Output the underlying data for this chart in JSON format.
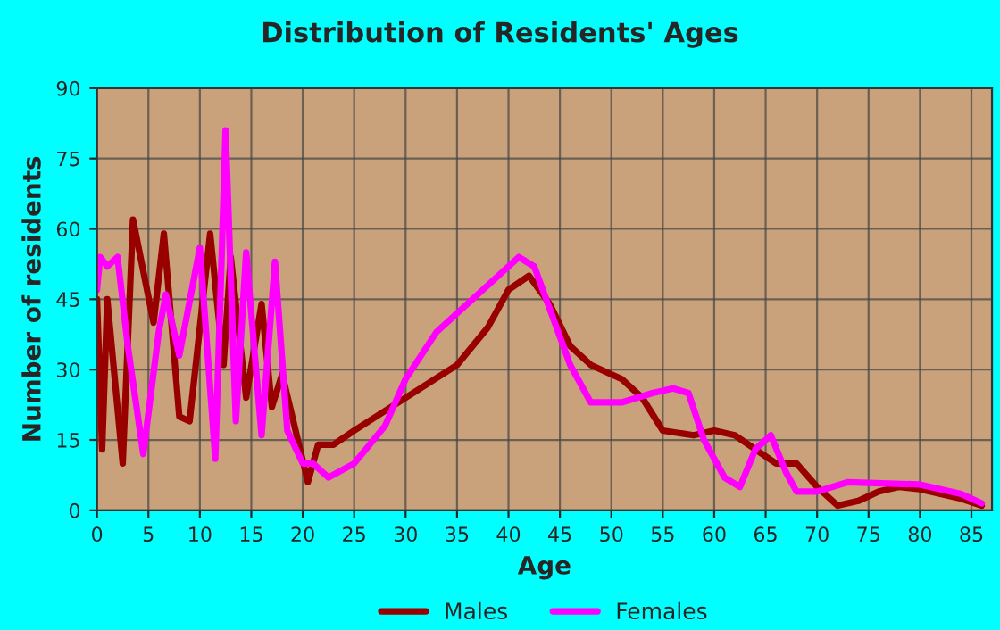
{
  "chart_data": {
    "type": "line",
    "title": "Distribution of Residents' Ages",
    "xlabel": "Age",
    "ylabel": "Number of residents",
    "xlim": [
      0,
      87
    ],
    "xticks": [
      0,
      5,
      10,
      15,
      20,
      25,
      30,
      35,
      40,
      45,
      50,
      55,
      60,
      65,
      70,
      75,
      80,
      85
    ],
    "ylim": [
      0,
      90
    ],
    "yticks": [
      0,
      15,
      30,
      45,
      60,
      75,
      90
    ],
    "grid": true,
    "legend": "bottom",
    "series": [
      {
        "name": "Males",
        "color": "#990000",
        "x": [
          0,
          0.5,
          1,
          2.5,
          3.5,
          5.5,
          6.5,
          8,
          9,
          11,
          12.3,
          13,
          14.5,
          16,
          17,
          18,
          20.5,
          21.5,
          23,
          25,
          30,
          35,
          38,
          40,
          42,
          44,
          46,
          48,
          51,
          53,
          55,
          58,
          60,
          62,
          64,
          66,
          68,
          70,
          72,
          74,
          76,
          78,
          80,
          84,
          86
        ],
        "values": [
          45,
          13,
          45,
          10,
          62,
          40,
          59,
          20,
          19,
          59,
          31,
          54,
          24,
          44,
          22,
          29,
          6,
          14,
          14,
          17,
          24,
          31,
          39,
          47,
          50,
          44,
          35,
          31,
          28,
          24,
          17,
          16,
          17,
          16,
          13,
          10,
          10,
          5,
          1,
          2,
          4,
          5,
          4.5,
          2.5,
          1
        ]
      },
      {
        "name": "Females",
        "color": "#ff00ff",
        "x": [
          0,
          0.3,
          1,
          2,
          3,
          4.5,
          6,
          6.7,
          8,
          10,
          11.5,
          12.5,
          13.5,
          14.5,
          16,
          17.3,
          18.5,
          20,
          21,
          22.5,
          25,
          28,
          30,
          33,
          36,
          39,
          41,
          42.5,
          44,
          46,
          48,
          51,
          54,
          56,
          57.5,
          59,
          61,
          62.5,
          64,
          65.5,
          67,
          68,
          70,
          73,
          80,
          84,
          86
        ],
        "values": [
          47,
          54,
          52,
          54,
          35,
          12,
          38,
          46,
          33,
          56,
          11,
          81,
          19,
          55,
          16,
          53,
          17,
          10,
          10,
          7,
          10,
          18,
          28,
          38,
          44,
          50,
          54,
          52,
          43,
          31,
          23,
          23,
          25,
          26,
          25,
          15,
          7,
          5,
          13,
          16,
          8,
          4,
          4,
          6,
          5.5,
          3.5,
          1.5
        ]
      }
    ]
  }
}
